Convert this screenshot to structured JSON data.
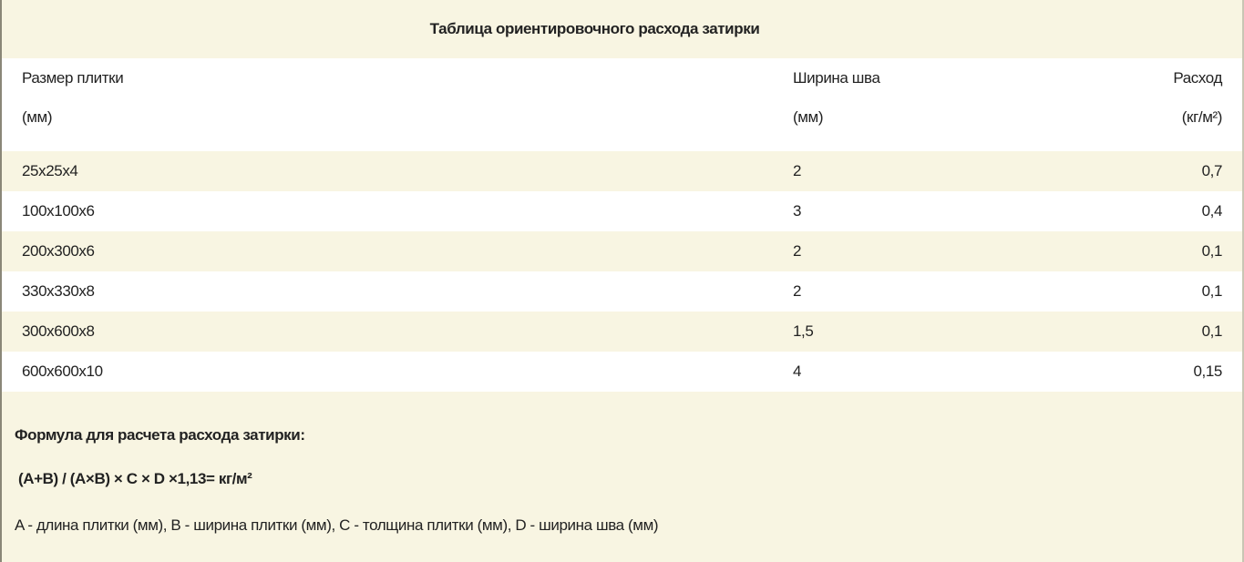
{
  "title": "Таблица ориентировочного расхода затирки",
  "columns": [
    {
      "label": "Размер плитки",
      "unit": "(мм)"
    },
    {
      "label": "Ширина шва",
      "unit": "(мм)"
    },
    {
      "label": "Расход",
      "unit": "(кг/м²)"
    }
  ],
  "rows": [
    [
      "25x25x4",
      "2",
      "0,7"
    ],
    [
      "100x100x6",
      "3",
      "0,4"
    ],
    [
      "200x300x6",
      "2",
      "0,1"
    ],
    [
      "330x330x8",
      "2",
      "0,1"
    ],
    [
      "300x600x8",
      "1,5",
      "0,1"
    ],
    [
      "600x600x10",
      "4",
      "0,15"
    ]
  ],
  "formula": {
    "title": "Формула для расчета расхода затирки:",
    "expression": "(A+B) / (A×B) × C × D ×1,13=  кг/м²",
    "legend": "A - длина плитки (мм), B - ширина плитки (мм), C - толщина плитки (мм), D - ширина шва (мм)"
  },
  "colors": {
    "cream": "#f8f5e2",
    "white": "#ffffff",
    "text": "#222222"
  }
}
